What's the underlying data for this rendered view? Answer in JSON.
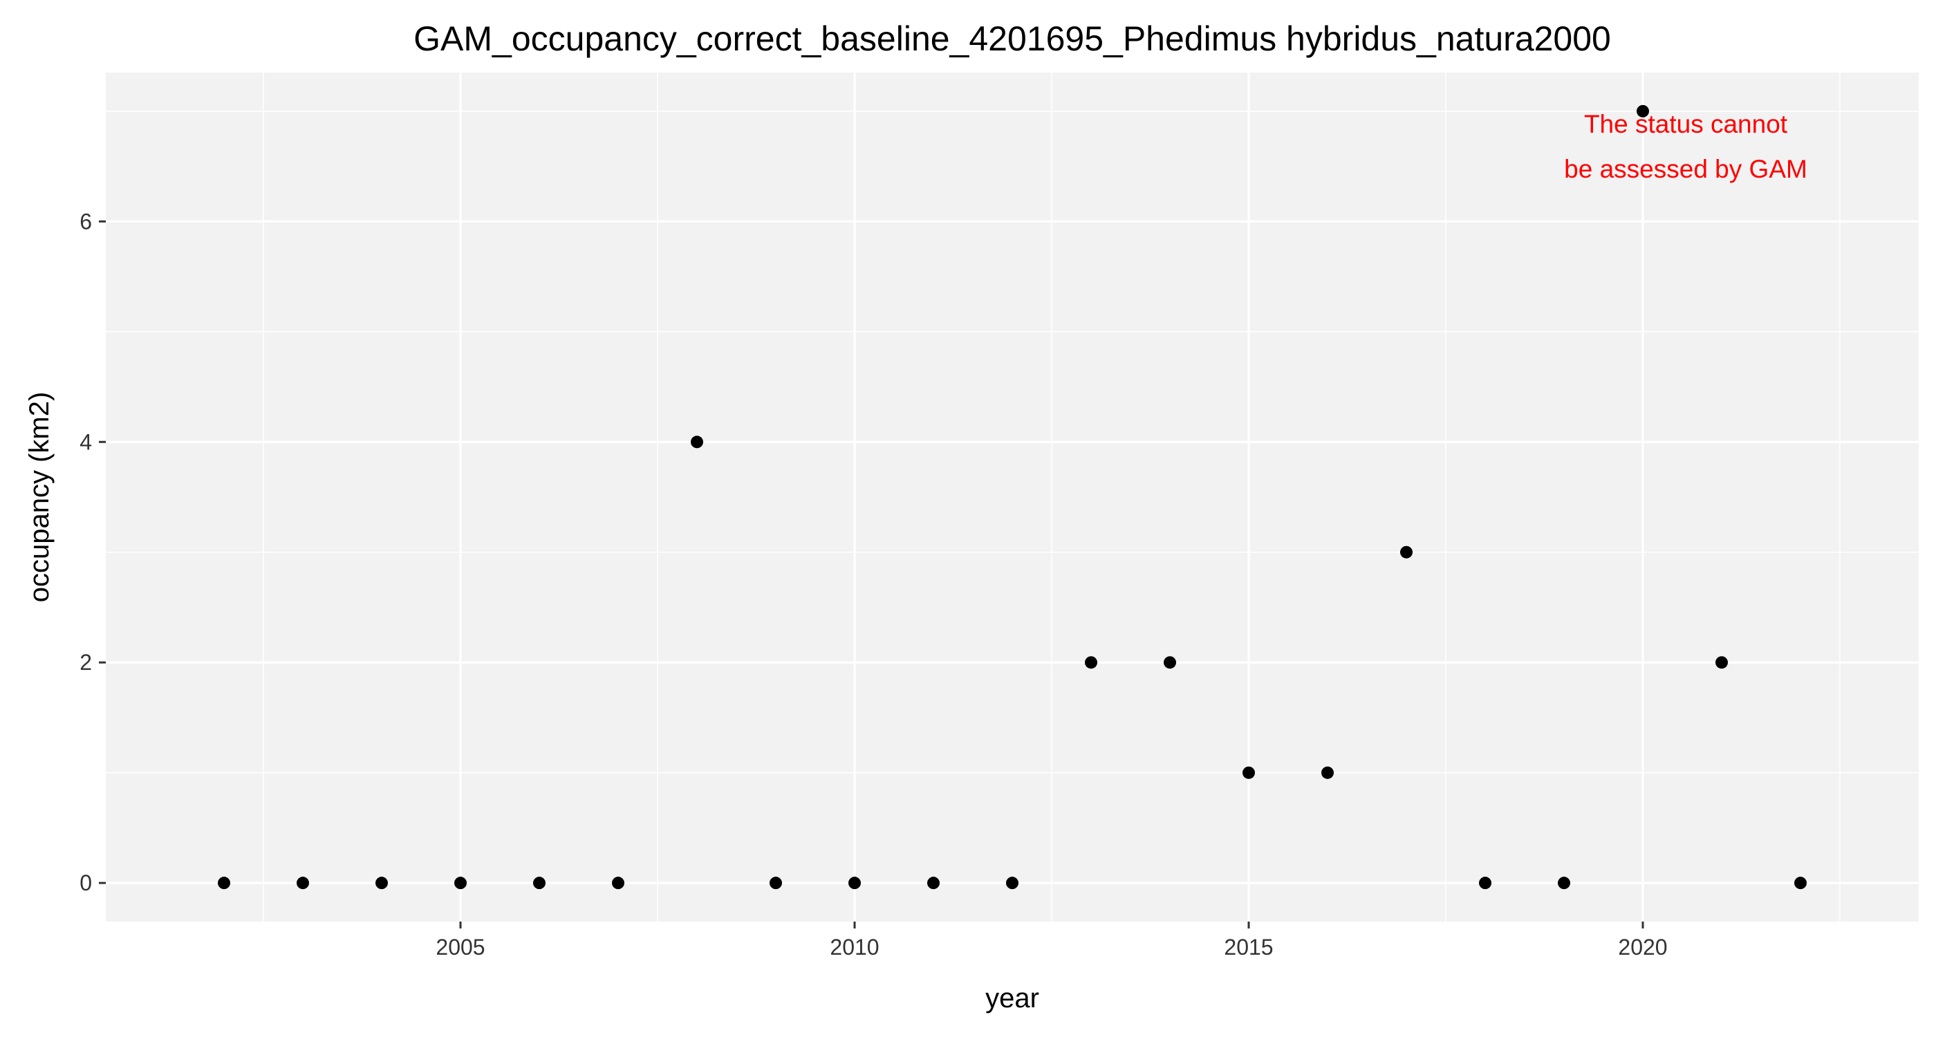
{
  "chart_data": {
    "type": "scatter",
    "title": "GAM_occupancy_correct_baseline_4201695_Phedimus hybridus_natura2000",
    "xlabel": "year",
    "ylabel": "occupancy (km2)",
    "xlim": [
      2000.5,
      2023.5
    ],
    "ylim": [
      -0.35,
      7.35
    ],
    "x_ticks": [
      2005,
      2010,
      2015,
      2020
    ],
    "x_tick_labels": [
      "2005",
      "2010",
      "2015",
      "2020"
    ],
    "y_ticks": [
      0,
      2,
      4,
      6
    ],
    "y_tick_labels": [
      "0",
      "2",
      "4",
      "6"
    ],
    "grid": true,
    "legend": "none",
    "points": [
      {
        "x": 2002,
        "y": 0
      },
      {
        "x": 2003,
        "y": 0
      },
      {
        "x": 2004,
        "y": 0
      },
      {
        "x": 2005,
        "y": 0
      },
      {
        "x": 2006,
        "y": 0
      },
      {
        "x": 2007,
        "y": 0
      },
      {
        "x": 2008,
        "y": 4
      },
      {
        "x": 2009,
        "y": 0
      },
      {
        "x": 2010,
        "y": 0
      },
      {
        "x": 2011,
        "y": 0
      },
      {
        "x": 2012,
        "y": 0
      },
      {
        "x": 2013,
        "y": 2
      },
      {
        "x": 2014,
        "y": 2
      },
      {
        "x": 2015,
        "y": 1
      },
      {
        "x": 2016,
        "y": 1
      },
      {
        "x": 2017,
        "y": 3
      },
      {
        "x": 2018,
        "y": 0
      },
      {
        "x": 2019,
        "y": 0
      },
      {
        "x": 2020,
        "y": 7
      },
      {
        "x": 2021,
        "y": 2
      },
      {
        "x": 2022,
        "y": 0
      }
    ],
    "annotation": {
      "lines": [
        "The status cannot",
        "be assessed by GAM"
      ]
    },
    "colors": {
      "panel_background": "#f2f2f2",
      "grid": "#ffffff",
      "points": "#000000",
      "annotation": "#ff0000"
    }
  }
}
